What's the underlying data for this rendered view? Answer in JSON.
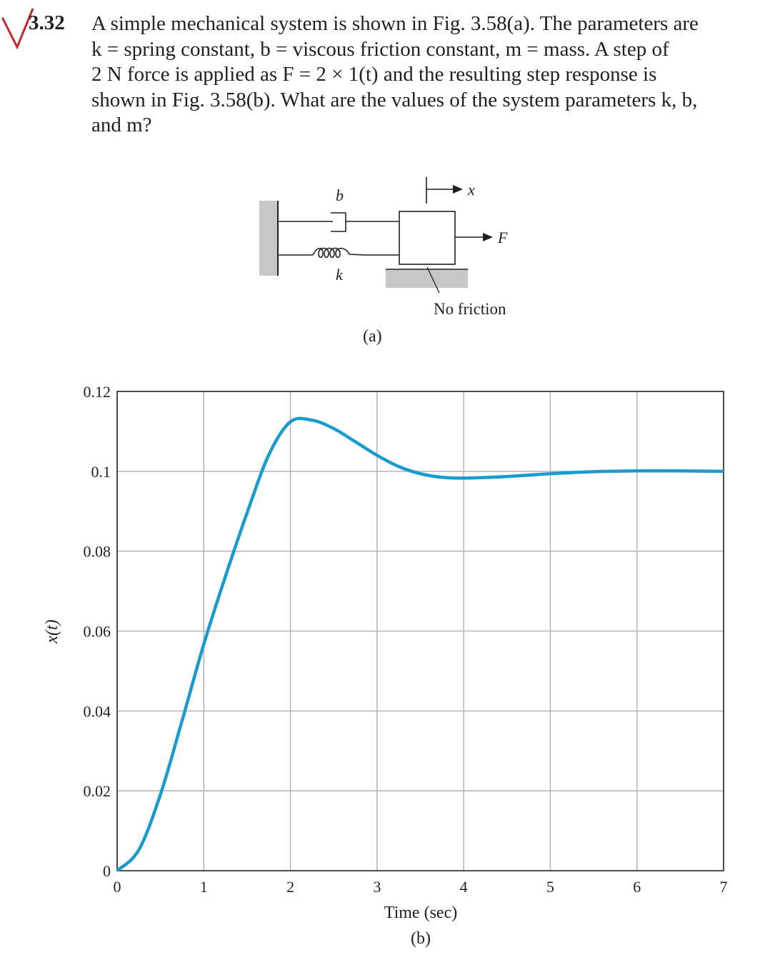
{
  "problem": {
    "number": "3.32",
    "lines": [
      "A simple mechanical system is shown in Fig. 3.58(a). The parameters are",
      "k = spring constant, b = viscous friction constant, m = mass. A step of",
      "2 N force is applied as F = 2 × 1(t) and the resulting step response is",
      "shown in Fig. 3.58(b). What are the values of the system parameters k, b,",
      "and m?"
    ],
    "check_mark_color": "#c0272d"
  },
  "figure_a": {
    "label_b": "b",
    "label_k": "k",
    "label_x": "x",
    "label_F": "F",
    "note": "No friction",
    "caption": "(a)"
  },
  "figure_b": {
    "caption": "(b)"
  },
  "chart_data": {
    "type": "line",
    "title": "",
    "xlabel": "Time (sec)",
    "ylabel": "x(t)",
    "xlim": [
      0,
      7
    ],
    "ylim": [
      0,
      0.12
    ],
    "xticks": [
      "0",
      "1",
      "2",
      "3",
      "4",
      "5",
      "6",
      "7"
    ],
    "yticks": [
      "0",
      "0.02",
      "0.04",
      "0.06",
      "0.08",
      "0.1",
      "0.12"
    ],
    "grid": true,
    "line_color": "#1a9bd0",
    "series": [
      {
        "name": "x(t)",
        "x": [
          0,
          0.25,
          0.5,
          0.75,
          1.0,
          1.25,
          1.5,
          1.75,
          2.0,
          2.25,
          2.5,
          2.75,
          3.0,
          3.25,
          3.5,
          3.75,
          4.0,
          4.5,
          5.0,
          5.5,
          6.0,
          6.5,
          7.0
        ],
        "values": [
          0,
          0.0052,
          0.0191,
          0.0376,
          0.0567,
          0.0737,
          0.0896,
          0.1041,
          0.1124,
          0.1128,
          0.1107,
          0.1074,
          0.104,
          0.1012,
          0.0994,
          0.0985,
          0.0983,
          0.0987,
          0.0994,
          0.0999,
          0.1001,
          0.1001,
          0.1
        ]
      }
    ],
    "annotations": {
      "peak_value": 0.113,
      "peak_time": 2.05,
      "steady_state": 0.1
    }
  }
}
